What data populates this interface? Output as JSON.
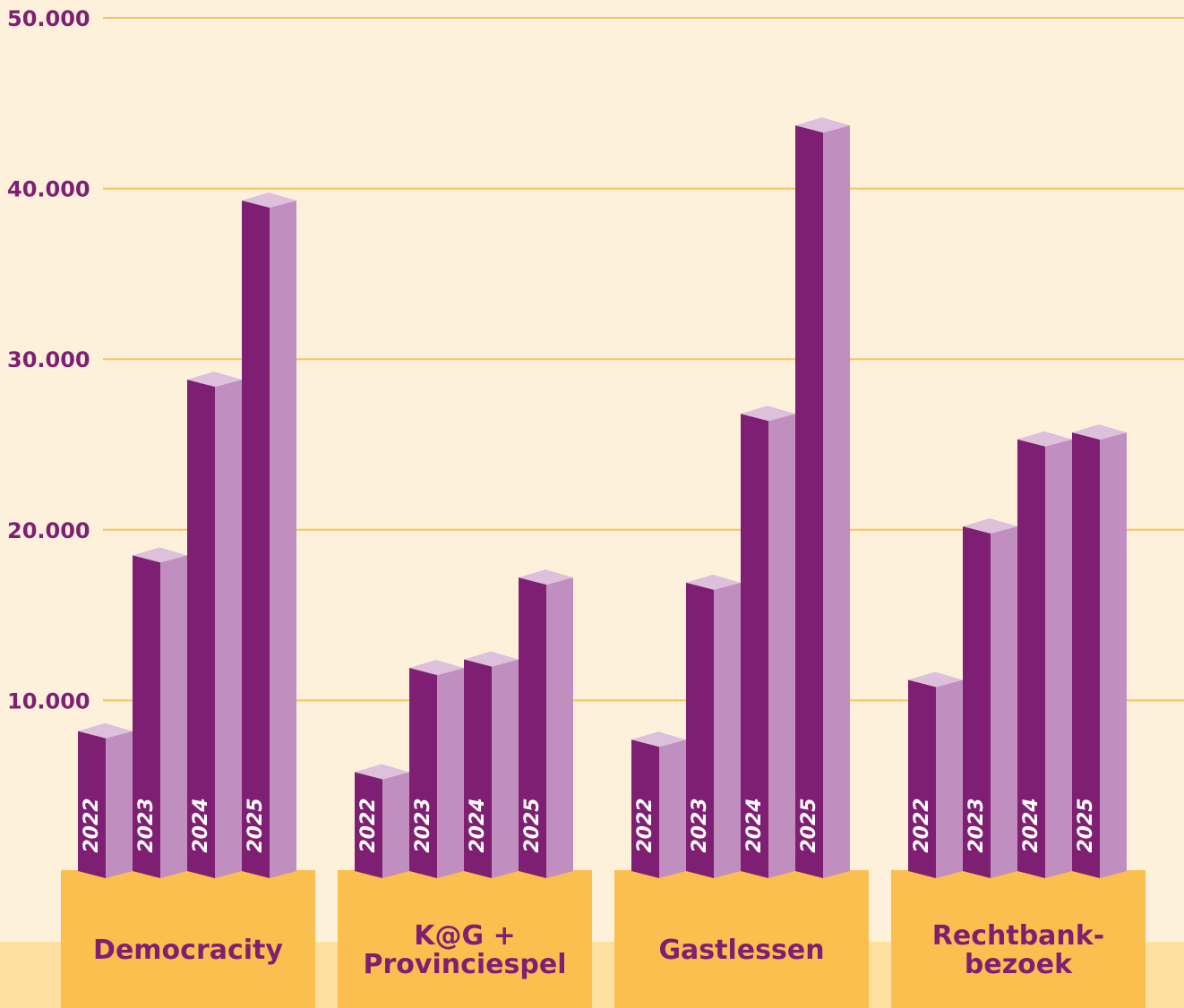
{
  "chart_data": {
    "type": "bar3d",
    "categories": [
      "Democracity",
      "K@G +\nProvinciespel",
      "Gastlessen",
      "Rechtbank-\nbezoek"
    ],
    "series": [
      {
        "name": "2022",
        "color": "#7f1f73",
        "values": [
          8200,
          5800,
          7700,
          11200
        ]
      },
      {
        "name": "2023",
        "color": "#7f1f73",
        "values": [
          18500,
          11900,
          16900,
          20200
        ]
      },
      {
        "name": "2024",
        "color": "#7f1f73",
        "values": [
          28800,
          12400,
          26800,
          25300
        ]
      },
      {
        "name": "2025",
        "color": "#7f1f73",
        "values": [
          39300,
          17200,
          43700,
          25700
        ]
      }
    ],
    "ylim": [
      0,
      50000
    ],
    "yticks": [
      {
        "value": 10000,
        "label": "10.000"
      },
      {
        "value": 20000,
        "label": "20.000"
      },
      {
        "value": 30000,
        "label": "30.000"
      },
      {
        "value": 40000,
        "label": "40.000"
      },
      {
        "value": 50000,
        "label": "50.000"
      }
    ],
    "grid": true
  }
}
